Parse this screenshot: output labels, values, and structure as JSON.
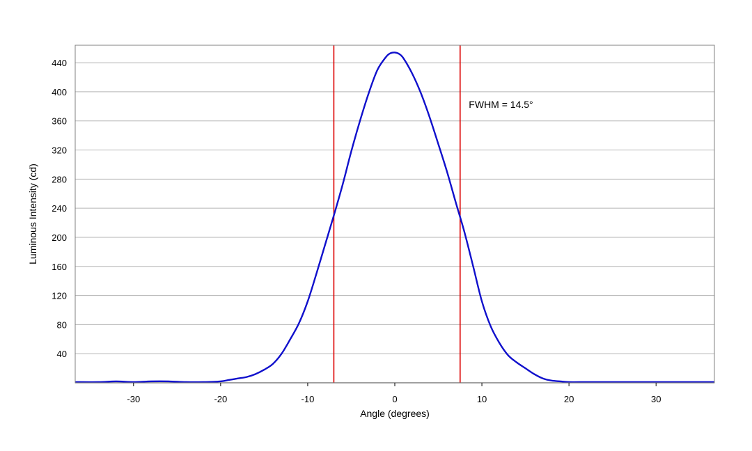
{
  "chart_data": {
    "type": "line",
    "title": "",
    "xlabel": "Angle (degrees)",
    "ylabel": "Luminous Intensity (cd)",
    "xlim": [
      -36.7,
      36.7
    ],
    "ylim": [
      0,
      464
    ],
    "xticks": [
      -30,
      -20,
      -10,
      0,
      10,
      20,
      30
    ],
    "xtick_labels": [
      "-30",
      "-20",
      "-10",
      "0",
      "10",
      "20",
      "30"
    ],
    "yticks": [
      40,
      80,
      120,
      160,
      200,
      240,
      280,
      320,
      360,
      400,
      440
    ],
    "ytick_labels": [
      "40",
      "80",
      "120",
      "160",
      "200",
      "240",
      "280",
      "320",
      "360",
      "400",
      "440"
    ],
    "grid": "horizontal",
    "colors": {
      "curve": "#1010cc",
      "markers": "#dd0000",
      "grid": "#b4b4b4",
      "frame": "#808080"
    },
    "series": [
      {
        "x": [
          -36.7,
          -34,
          -32,
          -30,
          -28,
          -26,
          -24,
          -22,
          -20,
          -19,
          -18,
          -17,
          -16,
          -15,
          -14,
          -13,
          -12,
          -11,
          -10,
          -9,
          -8,
          -7,
          -6,
          -5,
          -4,
          -3,
          -2,
          -1,
          -0.5,
          0,
          0.5,
          1,
          2,
          3,
          4,
          5,
          6,
          7,
          8,
          9,
          10,
          11,
          12,
          13,
          14,
          15,
          16,
          17,
          18,
          19,
          20,
          22,
          24,
          26,
          28,
          30,
          32,
          34,
          36.7
        ],
        "y": [
          1,
          1,
          2,
          1,
          2,
          2,
          1,
          1,
          2,
          4,
          6,
          8,
          12,
          18,
          26,
          40,
          60,
          82,
          112,
          150,
          190,
          230,
          272,
          318,
          360,
          398,
          430,
          448,
          453,
          454,
          452,
          446,
          425,
          398,
          365,
          328,
          290,
          248,
          207,
          160,
          112,
          78,
          55,
          38,
          28,
          20,
          12,
          6,
          3,
          2,
          1,
          1,
          1,
          1,
          1,
          1,
          1,
          1,
          1
        ]
      }
    ],
    "vlines": [
      -7,
      7.5
    ],
    "annotation": {
      "text": "FWHM = 14.5°",
      "x": 8.5,
      "y": 378
    }
  }
}
